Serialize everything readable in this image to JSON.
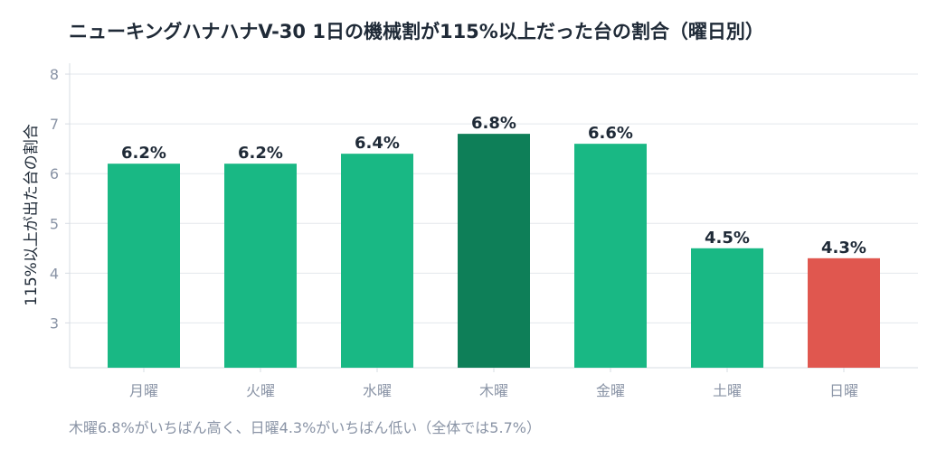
{
  "chart_data": {
    "type": "bar",
    "title": "ニューキングハナハナV-30 1日の機械割が115%以上だった台の割合（曜日別）",
    "ylabel": "115%以上が出た台の割合",
    "xlabel": "",
    "categories": [
      "月曜",
      "火曜",
      "水曜",
      "木曜",
      "金曜",
      "土曜",
      "日曜"
    ],
    "values": [
      6.2,
      6.2,
      6.4,
      6.8,
      6.6,
      4.5,
      4.3
    ],
    "value_labels": [
      "6.2%",
      "6.2%",
      "6.4%",
      "6.8%",
      "6.6%",
      "4.5%",
      "4.3%"
    ],
    "ylim": [
      2.1,
      8.4
    ],
    "yticks": [
      3,
      4,
      5,
      6,
      7,
      8
    ],
    "grid": true,
    "colors": {
      "default": "#19b884",
      "highest": "#0e7f58",
      "lowest": "#e0574f"
    },
    "highlight": {
      "highest": "木曜",
      "lowest": "日曜"
    },
    "note": "木曜6.8%がいちばん高く、日曜4.3%がいちばん低い（全体では5.7%）"
  }
}
